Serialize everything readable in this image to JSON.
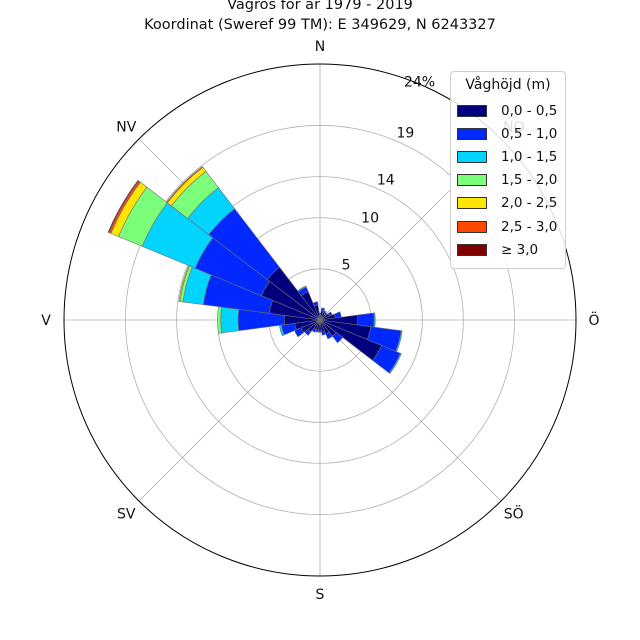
{
  "title": "Vågros för år 1979 - 2019",
  "subtitle": "Koordinat (Sweref 99 TM): E 349629, N 6243327",
  "legend": {
    "title": "Våghöjd (m)",
    "items": [
      {
        "label": "0,0 - 0,5",
        "color": "#00007f"
      },
      {
        "label": "0,5 - 1,0",
        "color": "#0028ff"
      },
      {
        "label": "1,0 - 1,5",
        "color": "#00d4ff"
      },
      {
        "label": "1,5 - 2,0",
        "color": "#7bff7b"
      },
      {
        "label": "2,0 - 2,5",
        "color": "#ffe500"
      },
      {
        "label": "2,5 - 3,0",
        "color": "#ff4800"
      },
      {
        "label": "≥ 3,0",
        "color": "#7f0000"
      }
    ]
  },
  "chart_data": {
    "type": "windrose",
    "direction_labels": [
      "N",
      "NO",
      "Ö",
      "SÖ",
      "S",
      "SV",
      "V",
      "NV"
    ],
    "radial_ticks": [
      5,
      10,
      14,
      19
    ],
    "radial_max_label": "24%",
    "rmax": 25,
    "sector_width_deg": 15,
    "sectors": [
      {
        "direction_deg": 0,
        "values": [
          0.5,
          0.2,
          0,
          0,
          0,
          0,
          0
        ]
      },
      {
        "direction_deg": 15,
        "values": [
          0.9,
          0.3,
          0,
          0,
          0,
          0,
          0
        ]
      },
      {
        "direction_deg": 30,
        "values": [
          0.8,
          0.2,
          0,
          0,
          0,
          0,
          0
        ]
      },
      {
        "direction_deg": 45,
        "values": [
          0.7,
          0.2,
          0,
          0,
          0,
          0,
          0
        ]
      },
      {
        "direction_deg": 60,
        "values": [
          1.0,
          0.3,
          0,
          0,
          0,
          0,
          0
        ]
      },
      {
        "direction_deg": 75,
        "values": [
          1.5,
          0.6,
          0,
          0,
          0,
          0,
          0
        ]
      },
      {
        "direction_deg": 90,
        "values": [
          3.7,
          1.6,
          0.1,
          0,
          0,
          0,
          0
        ]
      },
      {
        "direction_deg": 105,
        "values": [
          5.0,
          3.0,
          0.1,
          0,
          0,
          0,
          0
        ]
      },
      {
        "direction_deg": 120,
        "values": [
          6.5,
          2.0,
          0.1,
          0,
          0,
          0,
          0
        ]
      },
      {
        "direction_deg": 135,
        "values": [
          2.0,
          0.8,
          0,
          0,
          0,
          0,
          0
        ]
      },
      {
        "direction_deg": 150,
        "values": [
          1.5,
          0.5,
          0,
          0,
          0,
          0,
          0
        ]
      },
      {
        "direction_deg": 165,
        "values": [
          1.2,
          0.3,
          0,
          0,
          0,
          0,
          0
        ]
      },
      {
        "direction_deg": 180,
        "values": [
          1.0,
          0.2,
          0,
          0,
          0,
          0,
          0
        ]
      },
      {
        "direction_deg": 195,
        "values": [
          1.0,
          0.2,
          0,
          0,
          0,
          0,
          0
        ]
      },
      {
        "direction_deg": 210,
        "values": [
          1.0,
          0.3,
          0,
          0,
          0,
          0,
          0
        ]
      },
      {
        "direction_deg": 225,
        "values": [
          1.5,
          0.4,
          0,
          0,
          0,
          0,
          0
        ]
      },
      {
        "direction_deg": 240,
        "values": [
          2.0,
          0.7,
          0,
          0,
          0,
          0,
          0
        ]
      },
      {
        "direction_deg": 255,
        "values": [
          2.5,
          1.3,
          0.2,
          0,
          0,
          0,
          0
        ]
      },
      {
        "direction_deg": 270,
        "values": [
          3.5,
          4.5,
          1.7,
          0.3,
          0,
          0,
          0
        ]
      },
      {
        "direction_deg": 285,
        "values": [
          5.0,
          6.5,
          2.0,
          0.3,
          0.1,
          0,
          0
        ]
      },
      {
        "direction_deg": 300,
        "values": [
          6.2,
          7.0,
          5.6,
          2.5,
          0.8,
          0.2,
          0.1
        ]
      },
      {
        "direction_deg": 315,
        "values": [
          6.5,
          7.2,
          2.6,
          2.0,
          0.5,
          0.1,
          0
        ]
      },
      {
        "direction_deg": 330,
        "values": [
          3.0,
          0.5,
          0.1,
          0,
          0,
          0,
          0
        ]
      },
      {
        "direction_deg": 345,
        "values": [
          1.5,
          0.3,
          0,
          0,
          0,
          0,
          0
        ]
      }
    ]
  }
}
